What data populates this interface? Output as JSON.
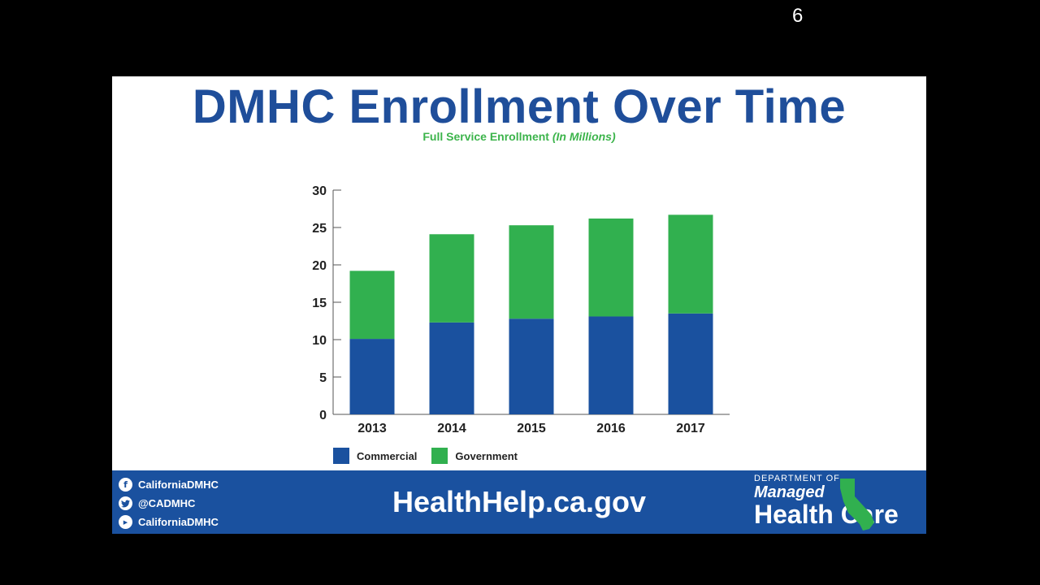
{
  "slide": {
    "title": "DMHC Enrollment Over Time",
    "subtitle_main": "Full Service Enrollment",
    "subtitle_italic": "(In Millions)",
    "page_number": "6"
  },
  "chart_data": {
    "type": "bar",
    "stacked": true,
    "categories": [
      "2013",
      "2014",
      "2015",
      "2016",
      "2017"
    ],
    "series": [
      {
        "name": "Commercial",
        "values": [
          10.1,
          12.3,
          12.8,
          13.1,
          13.5
        ],
        "color": "#1a519f"
      },
      {
        "name": "Government",
        "values": [
          9.1,
          11.8,
          12.5,
          13.1,
          13.2
        ],
        "color": "#31b04f"
      }
    ],
    "title": "Full Service Enrollment (In Millions)",
    "xlabel": "",
    "ylabel": "",
    "ylim": [
      0,
      30
    ],
    "yticks": [
      "0",
      "5",
      "10",
      "15",
      "20",
      "25",
      "30"
    ],
    "grid": false,
    "legend": "bottom-left"
  },
  "legend": {
    "commercial": "Commercial",
    "government": "Government"
  },
  "footer": {
    "facebook": "CaliforniaDMHC",
    "twitter": "@CADMHC",
    "youtube": "CaliforniaDMHC",
    "website": "HealthHelp.ca.gov",
    "logo_line1": "DEPARTMENT OF",
    "logo_line2": "Managed",
    "logo_line3": "Health Care",
    "icons": [
      "facebook-icon",
      "twitter-icon",
      "youtube-icon",
      "california-icon"
    ]
  }
}
